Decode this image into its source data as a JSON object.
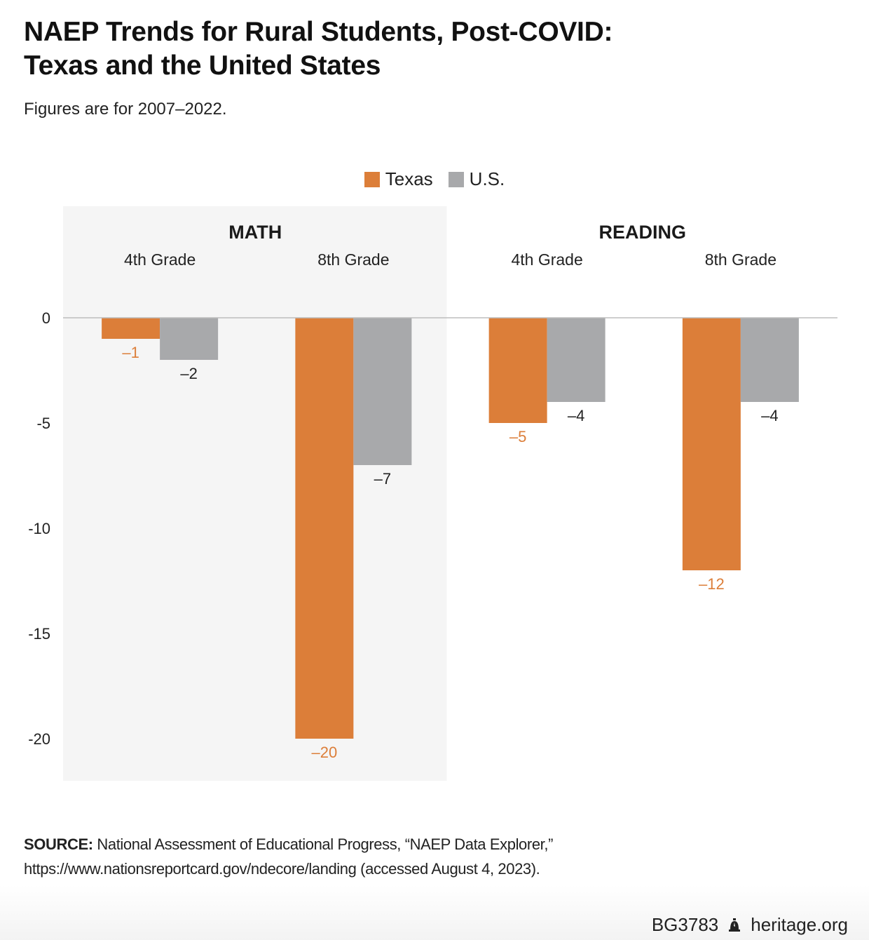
{
  "title_line1": "NAEP Trends for Rural Students, Post-COVID:",
  "title_line2": "Texas and the United States",
  "subtitle": "Figures are for 2007–2022.",
  "legend": [
    {
      "label": "Texas",
      "color": "#dc7e39"
    },
    {
      "label": "U.S.",
      "color": "#a8a9ab"
    }
  ],
  "chart_data": {
    "type": "bar",
    "groups": [
      {
        "name": "MATH",
        "categories": [
          "4th Grade",
          "8th Grade"
        ],
        "shaded": true
      },
      {
        "name": "READING",
        "categories": [
          "4th Grade",
          "8th Grade"
        ],
        "shaded": false
      }
    ],
    "categories": [
      "MATH 4th Grade",
      "MATH 8th Grade",
      "READING 4th Grade",
      "READING 8th Grade"
    ],
    "series": [
      {
        "name": "Texas",
        "values": [
          -1,
          -20,
          -5,
          -12
        ],
        "labels": [
          "–1",
          "–20",
          "–5",
          "–12"
        ],
        "color": "#dc7e39",
        "label_color": "#dc7e39"
      },
      {
        "name": "U.S.",
        "values": [
          -2,
          -7,
          -4,
          -4
        ],
        "labels": [
          "–2",
          "–7",
          "–4",
          "–4"
        ],
        "color": "#a8a9ab",
        "label_color": "#222222"
      }
    ],
    "yticks": [
      "0",
      "-5",
      "-10",
      "-15",
      "-20"
    ],
    "ytick_values": [
      0,
      -5,
      -10,
      -15,
      -20
    ],
    "ylim": [
      -21.8,
      5.3
    ],
    "grid": false,
    "legend_position": "top-center"
  },
  "source_label": "SOURCE:",
  "source_text": "National Assessment of Educational Progress, “NAEP Data Explorer,” https://www.nationsreportcard.gov/ndecore/landing (accessed August 4, 2023).",
  "footer_code": "BG3783",
  "footer_site": "heritage.org"
}
